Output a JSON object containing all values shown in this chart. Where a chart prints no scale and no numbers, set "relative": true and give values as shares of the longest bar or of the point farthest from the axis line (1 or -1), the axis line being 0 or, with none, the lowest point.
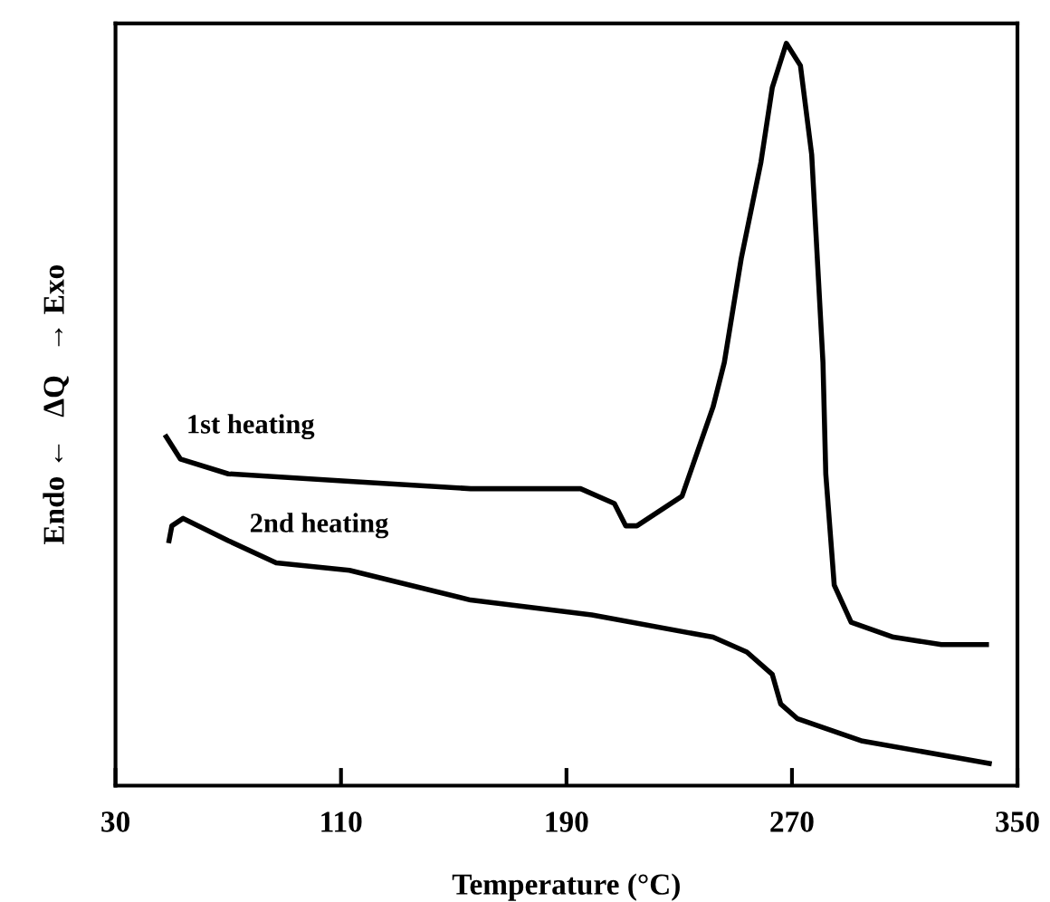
{
  "chart_data": {
    "type": "line",
    "xlabel": "Temperature (°C)",
    "ylabel": "Endo ←   ΔQ   → Exo",
    "relative": true,
    "xlim": [
      30,
      350
    ],
    "xticks": [
      30,
      110,
      190,
      270,
      350
    ],
    "legend": false,
    "grid": false,
    "marker": "none",
    "line_style": "solid",
    "series": [
      {
        "name": "1st heating",
        "color": "#000000",
        "x": [
          48,
          53,
          70,
          113,
          156,
          195,
          207,
          211,
          215,
          231,
          242,
          246,
          252,
          259,
          263,
          268,
          273,
          277,
          281,
          282,
          285,
          291,
          306,
          323,
          339
        ],
        "values": [
          0.47,
          0.44,
          0.42,
          0.41,
          0.4,
          0.4,
          0.38,
          0.35,
          0.35,
          0.39,
          0.51,
          0.57,
          0.71,
          0.84,
          0.94,
          1.0,
          0.97,
          0.85,
          0.57,
          0.42,
          0.27,
          0.22,
          0.2,
          0.19,
          0.19
        ]
      },
      {
        "name": "2nd heating",
        "color": "#000000",
        "x": [
          49,
          50,
          54,
          70,
          87,
          113,
          156,
          199,
          242,
          254,
          263,
          266,
          272,
          295,
          340
        ],
        "values": [
          0.33,
          0.35,
          0.36,
          0.33,
          0.3,
          0.29,
          0.25,
          0.23,
          0.2,
          0.18,
          0.15,
          0.11,
          0.09,
          0.06,
          0.03
        ]
      }
    ]
  }
}
